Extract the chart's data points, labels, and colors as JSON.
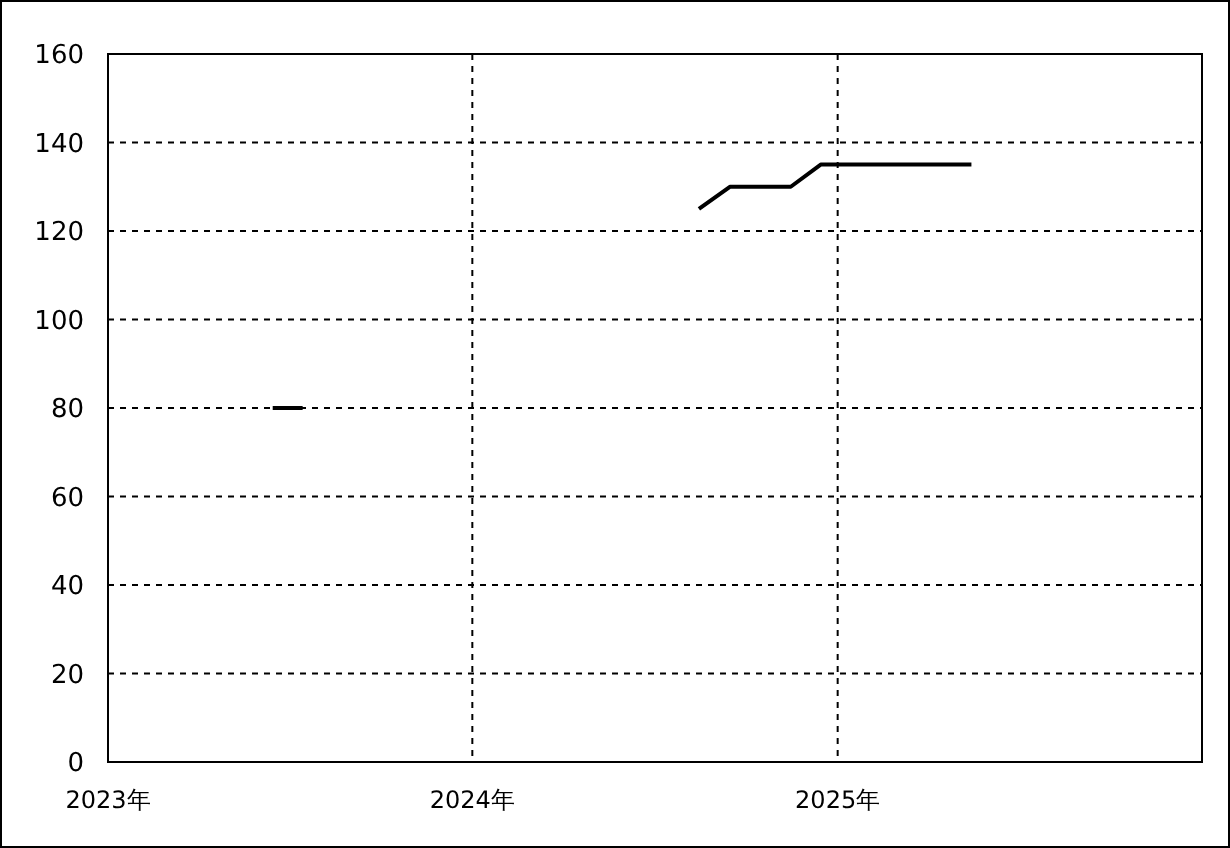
{
  "chart_data": {
    "type": "line",
    "series": [
      {
        "color": "#000000",
        "x": [
          "2023-06-15",
          "2023-07-15"
        ],
        "values": [
          80,
          80
        ]
      },
      {
        "color": "#000000",
        "x": [
          "2024-08-15",
          "2024-09-15",
          "2024-10-15",
          "2024-11-15",
          "2024-12-15",
          "2025-01-15",
          "2025-02-15",
          "2025-03-15",
          "2025-04-15",
          "2025-05-15"
        ],
        "values": [
          125,
          130,
          130,
          130,
          135,
          135,
          135,
          135,
          135,
          135
        ]
      }
    ],
    "xlim": [
      "2023",
      "2026"
    ],
    "xticks": [
      {
        "value": "2023",
        "label": "2023年"
      },
      {
        "value": "2024",
        "label": "2024年"
      },
      {
        "value": "2025",
        "label": "2025年"
      }
    ],
    "ylim": [
      0,
      160
    ],
    "yticks": [
      0,
      20,
      40,
      60,
      80,
      100,
      120,
      140,
      160
    ],
    "grid": true,
    "marker": "none",
    "line_style": "solid"
  }
}
